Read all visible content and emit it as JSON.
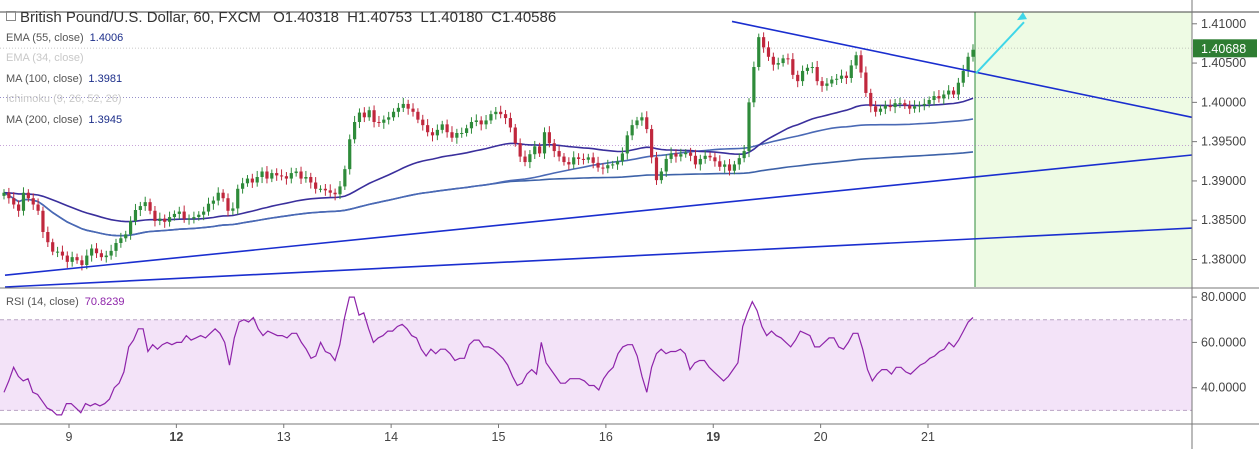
{
  "header": {
    "title": "British Pound/U.S. Dollar, 60, FXCM",
    "open": "O1.40318",
    "high": "H1.40753",
    "low": "L1.40180",
    "close": "C1.40586"
  },
  "indicators": [
    {
      "label": "EMA (55, close)",
      "value": "1.4006",
      "faded": false
    },
    {
      "label": "EMA (34, close)",
      "value": "",
      "faded": true
    },
    {
      "label": "MA (100, close)",
      "value": "1.3981",
      "faded": false
    },
    {
      "label": "Ichimoku (9, 26, 52, 26)",
      "value": "",
      "faded": true
    },
    {
      "label": "MA (200, close)",
      "value": "1.3945",
      "faded": false
    }
  ],
  "rsi": {
    "label": "RSI (14, close)",
    "value": "70.8239"
  },
  "colors": {
    "up": "#2e8b3a",
    "down": "#c0273d",
    "trendline": "#1a2ecf",
    "ema55": "#3a2f9c",
    "ma100": "#4a69b5",
    "ma200": "#3d62a8",
    "rsi": "#8e24aa",
    "rsi_band": "#f3e3f8",
    "forecast": "#eefbe4",
    "forecast_line": "#2e8b3a",
    "arrow": "#3fd6e8",
    "price_label_bg": "#2e7d32"
  },
  "chart_data": {
    "type": "candlestick",
    "price_axis": {
      "ticks": [
        "1.41000",
        "1.40500",
        "1.40000",
        "1.39500",
        "1.39000",
        "1.38500",
        "1.38000"
      ],
      "ylim": [
        1.3765,
        1.4115
      ]
    },
    "last_price": "1.40688",
    "x_labels": [
      "9",
      "12",
      "13",
      "14",
      "15",
      "16",
      "19",
      "20",
      "21"
    ],
    "x_label_bold": [
      "12",
      "19"
    ],
    "close": [
      1.3885,
      1.3878,
      1.387,
      1.3862,
      1.3885,
      1.3878,
      1.387,
      1.3862,
      1.3835,
      1.3822,
      1.381,
      1.381,
      1.3805,
      1.3797,
      1.3803,
      1.3799,
      1.3793,
      1.3805,
      1.3814,
      1.3808,
      1.3803,
      1.3805,
      1.3811,
      1.3821,
      1.3827,
      1.3832,
      1.3849,
      1.3863,
      1.3868,
      1.3873,
      1.3862,
      1.3849,
      1.3852,
      1.3848,
      1.3854,
      1.3858,
      1.3861,
      1.3852,
      1.3852,
      1.3854,
      1.3857,
      1.3861,
      1.3871,
      1.3875,
      1.3885,
      1.3878,
      1.3862,
      1.3865,
      1.389,
      1.3897,
      1.3903,
      1.3898,
      1.3905,
      1.3912,
      1.3903,
      1.391,
      1.3907,
      1.3906,
      1.3903,
      1.391,
      1.3912,
      1.3903,
      1.3905,
      1.3898,
      1.389,
      1.389,
      1.3888,
      1.3885,
      1.3883,
      1.3893,
      1.3915,
      1.3953,
      1.3975,
      1.3987,
      1.3981,
      1.399,
      1.3975,
      1.3974,
      1.3978,
      1.3981,
      1.3988,
      1.3993,
      1.3998,
      1.3992,
      1.3988,
      1.3978,
      1.3971,
      1.3962,
      1.3958,
      1.3965,
      1.3972,
      1.3962,
      1.3955,
      1.3961,
      1.3961,
      1.3967,
      1.3975,
      1.3977,
      1.3972,
      1.3977,
      1.3985,
      1.3988,
      1.3985,
      1.398,
      1.3968,
      1.3948,
      1.3931,
      1.3924,
      1.3934,
      1.3944,
      1.3935,
      1.3962,
      1.3948,
      1.3938,
      1.3931,
      1.3924,
      1.3921,
      1.393,
      1.3928,
      1.3927,
      1.393,
      1.3923,
      1.3917,
      1.3916,
      1.392,
      1.3921,
      1.3925,
      1.3935,
      1.3958,
      1.3971,
      1.3977,
      1.3981,
      1.3966,
      1.393,
      1.3901,
      1.3912,
      1.3928,
      1.3935,
      1.3931,
      1.3934,
      1.3936,
      1.3932,
      1.3921,
      1.3928,
      1.3932,
      1.393,
      1.3925,
      1.3918,
      1.3921,
      1.3913,
      1.3921,
      1.3929,
      1.3938,
      1.4,
      1.4045,
      1.4083,
      1.407,
      1.4058,
      1.4048,
      1.405,
      1.4056,
      1.4055,
      1.4035,
      1.4027,
      1.404,
      1.4044,
      1.4045,
      1.4027,
      1.4021,
      1.4024,
      1.4029,
      1.403,
      1.4034,
      1.4031,
      1.4047,
      1.406,
      1.4038,
      1.4012,
      1.3995,
      1.3988,
      1.3992,
      1.3996,
      1.3994,
      1.3999,
      1.3999,
      1.3996,
      1.3992,
      1.3995,
      1.3996,
      1.3998,
      1.4003,
      1.4008,
      1.4005,
      1.401,
      1.4015,
      1.401,
      1.4025,
      1.404,
      1.4058,
      1.4067
    ],
    "rsi": [
      38,
      43,
      49,
      45,
      43,
      44,
      38,
      37,
      34,
      31,
      30,
      28,
      28,
      33,
      33,
      31,
      29,
      33,
      32,
      33,
      32,
      33,
      35,
      40,
      42,
      47,
      58,
      61,
      66,
      66,
      56,
      59,
      57,
      59,
      60,
      59,
      60,
      60,
      63,
      61,
      62,
      63,
      62,
      64,
      66,
      64,
      60,
      50,
      62,
      69,
      70,
      69,
      71,
      66,
      63,
      65,
      64,
      63,
      63,
      62,
      64,
      64,
      60,
      57,
      53,
      54,
      60,
      56,
      55,
      52,
      59,
      71,
      80,
      80,
      72,
      73,
      66,
      60,
      62,
      63,
      65,
      65,
      67,
      68,
      66,
      63,
      62,
      57,
      54,
      57,
      55,
      57,
      57,
      55,
      52,
      53,
      53,
      59,
      61,
      61,
      58,
      58,
      57,
      55,
      53,
      50,
      45,
      41,
      42,
      46,
      48,
      46,
      60,
      51,
      48,
      45,
      42,
      42,
      44,
      44,
      44,
      43,
      41,
      41,
      39,
      44,
      47,
      49,
      55,
      58,
      59,
      59,
      54,
      45,
      38,
      49,
      55,
      57,
      55,
      56,
      56,
      57,
      55,
      48,
      51,
      52,
      52,
      49,
      47,
      45,
      43,
      45,
      48,
      51,
      67,
      73,
      78,
      74,
      67,
      63,
      65,
      63,
      62,
      60,
      58,
      61,
      65,
      64,
      63,
      58,
      58,
      60,
      62,
      62,
      58,
      57,
      60,
      64,
      64,
      57,
      48,
      43,
      46,
      48,
      48,
      46,
      49,
      49,
      47,
      46,
      48,
      50,
      51,
      53,
      54,
      56,
      57,
      60,
      58,
      61,
      65,
      69,
      71
    ],
    "rsi_axis": {
      "ticks": [
        "80.0000",
        "60.0000",
        "40.0000"
      ],
      "levels": [
        70,
        30
      ],
      "ylim": [
        24,
        84
      ]
    }
  }
}
